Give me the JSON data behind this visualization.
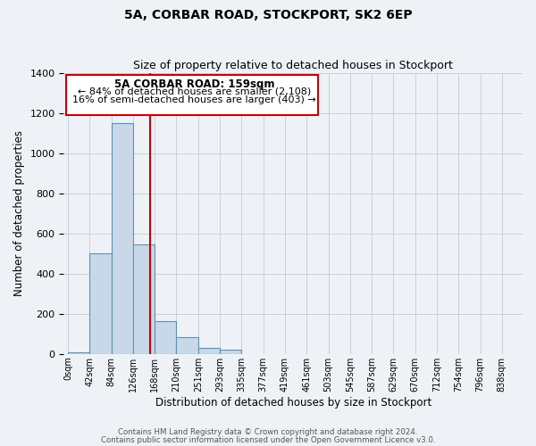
{
  "title": "5A, CORBAR ROAD, STOCKPORT, SK2 6EP",
  "subtitle": "Size of property relative to detached houses in Stockport",
  "xlabel": "Distribution of detached houses by size in Stockport",
  "ylabel": "Number of detached properties",
  "bar_values": [
    10,
    500,
    1150,
    545,
    165,
    85,
    30,
    20,
    0,
    0,
    0,
    0,
    0,
    0,
    0,
    0,
    0,
    0,
    0,
    0
  ],
  "bar_labels": [
    "0sqm",
    "42sqm",
    "84sqm",
    "126sqm",
    "168sqm",
    "210sqm",
    "251sqm",
    "293sqm",
    "335sqm",
    "377sqm",
    "419sqm",
    "461sqm",
    "503sqm",
    "545sqm",
    "587sqm",
    "629sqm",
    "670sqm",
    "712sqm",
    "754sqm",
    "796sqm",
    "838sqm"
  ],
  "bar_color": "#c8d8e8",
  "bar_edge_color": "#6090b0",
  "ylim": [
    0,
    1400
  ],
  "yticks": [
    0,
    200,
    400,
    600,
    800,
    1000,
    1200,
    1400
  ],
  "property_value": 159,
  "red_line_color": "#cc0000",
  "annotation_title": "5A CORBAR ROAD: 159sqm",
  "annotation_line1": "← 84% of detached houses are smaller (2,108)",
  "annotation_line2": "16% of semi-detached houses are larger (403) →",
  "annotation_box_color": "#ffffff",
  "annotation_box_edge": "#cc0000",
  "footnote1": "Contains HM Land Registry data © Crown copyright and database right 2024.",
  "footnote2": "Contains public sector information licensed under the Open Government Licence v3.0.",
  "bg_color": "#eef2f7",
  "plot_bg_color": "#eef2f7",
  "grid_color": "#c0ccda",
  "bin_width": 42,
  "n_bins": 20,
  "xlim_left": -8,
  "xlim_right": 880
}
